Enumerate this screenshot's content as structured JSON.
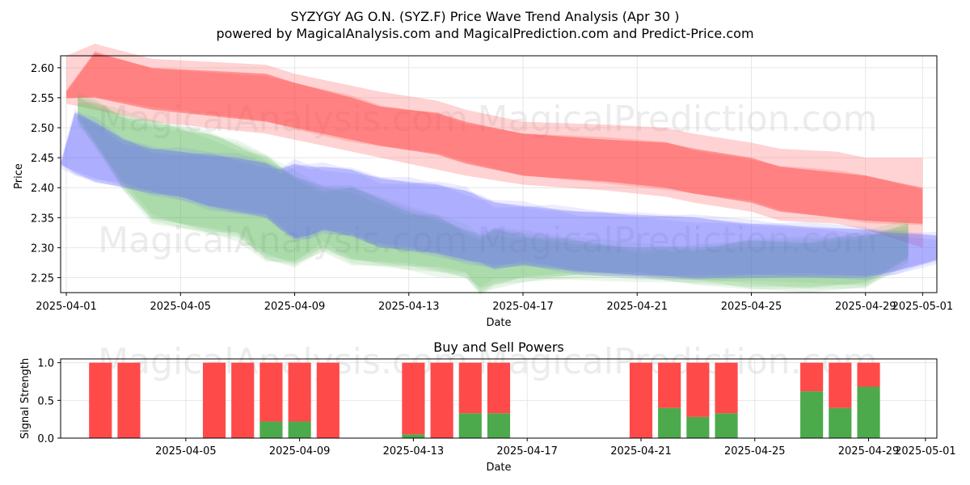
{
  "chart_data": [
    {
      "type": "area",
      "title": "SYZYGY AG O.N. (SYZ.F) Price Wave Trend Analysis (Apr 30 )",
      "subtitle": "powered by MagicalAnalysis.com and MagicalPrediction.com and Predict-Price.com",
      "xlabel": "Date",
      "ylabel": "Price",
      "xlim": [
        -0.2,
        30.5
      ],
      "ylim": [
        2.225,
        2.62
      ],
      "x_tick_values": [
        0,
        4,
        8,
        12,
        16,
        20,
        24,
        28,
        30
      ],
      "x_tick_labels": [
        "2025-04-01",
        "2025-04-05",
        "2025-04-09",
        "2025-04-13",
        "2025-04-17",
        "2025-04-21",
        "2025-04-25",
        "2025-04-29",
        "2025-05-01"
      ],
      "y_ticks": [
        2.25,
        2.3,
        2.35,
        2.4,
        2.45,
        2.5,
        2.55,
        2.6
      ],
      "y_tick_labels": [
        "2.25",
        "2.30",
        "2.35",
        "2.40",
        "2.45",
        "2.50",
        "2.55",
        "2.60"
      ],
      "grid": true,
      "watermarks": [
        "MagicalAnalysis.com",
        "MagicalPrediction.com"
      ],
      "series": [
        {
          "name": "red wave band (light)",
          "color": "#ff8080",
          "x": [
            0,
            1,
            3,
            7,
            8,
            10,
            11,
            13,
            14,
            16,
            19,
            21,
            22,
            24,
            25,
            27,
            28,
            30
          ],
          "upper": [
            2.62,
            2.64,
            2.615,
            2.605,
            2.59,
            2.57,
            2.56,
            2.545,
            2.53,
            2.51,
            2.505,
            2.5,
            2.49,
            2.475,
            2.465,
            2.46,
            2.45,
            2.45
          ],
          "lower": [
            2.54,
            2.53,
            2.51,
            2.49,
            2.48,
            2.46,
            2.45,
            2.43,
            2.42,
            2.405,
            2.395,
            2.385,
            2.375,
            2.36,
            2.345,
            2.34,
            2.33,
            2.3
          ]
        },
        {
          "name": "red wave band (core)",
          "color": "#ff4040",
          "x": [
            0,
            1,
            3,
            7,
            8,
            10,
            11,
            13,
            14,
            16,
            19,
            21,
            22,
            24,
            25,
            27,
            28,
            30
          ],
          "upper": [
            2.56,
            2.625,
            2.6,
            2.59,
            2.575,
            2.55,
            2.535,
            2.525,
            2.51,
            2.49,
            2.48,
            2.475,
            2.465,
            2.45,
            2.435,
            2.425,
            2.42,
            2.4
          ],
          "lower": [
            2.55,
            2.55,
            2.53,
            2.51,
            2.5,
            2.48,
            2.47,
            2.455,
            2.44,
            2.42,
            2.41,
            2.4,
            2.39,
            2.375,
            2.36,
            2.35,
            2.345,
            2.34
          ]
        },
        {
          "name": "green wave band",
          "color": "#40b040",
          "x": [
            0.4,
            1,
            2,
            3,
            5,
            6,
            7,
            8,
            9,
            10,
            12,
            13,
            14,
            14.5,
            15,
            16,
            18,
            20,
            22,
            24,
            26,
            28,
            29.5
          ],
          "upper": [
            2.55,
            2.54,
            2.52,
            2.51,
            2.49,
            2.47,
            2.45,
            2.42,
            2.4,
            2.4,
            2.36,
            2.35,
            2.33,
            2.32,
            2.33,
            2.32,
            2.31,
            2.3,
            2.3,
            2.31,
            2.31,
            2.32,
            2.34
          ],
          "lower": [
            2.51,
            2.47,
            2.4,
            2.35,
            2.33,
            2.32,
            2.28,
            2.27,
            2.3,
            2.28,
            2.27,
            2.26,
            2.25,
            2.225,
            2.24,
            2.25,
            2.255,
            2.25,
            2.24,
            2.235,
            2.235,
            2.24,
            2.28
          ]
        },
        {
          "name": "blue wave band",
          "color": "#6060ff",
          "x": [
            -0.2,
            0.3,
            1,
            2,
            3,
            4,
            5,
            6,
            7,
            7.5,
            8,
            8.5,
            9,
            10,
            11,
            12,
            13,
            14,
            14.5,
            15,
            16,
            17,
            18,
            20,
            22,
            24,
            26,
            28,
            29,
            30.5
          ],
          "upper": [
            2.44,
            2.525,
            2.51,
            2.48,
            2.465,
            2.46,
            2.455,
            2.45,
            2.44,
            2.43,
            2.44,
            2.435,
            2.435,
            2.43,
            2.415,
            2.41,
            2.405,
            2.395,
            2.385,
            2.375,
            2.37,
            2.365,
            2.36,
            2.355,
            2.35,
            2.34,
            2.335,
            2.33,
            2.325,
            2.32
          ],
          "lower": [
            2.44,
            2.425,
            2.41,
            2.4,
            2.39,
            2.385,
            2.37,
            2.36,
            2.35,
            2.33,
            2.315,
            2.32,
            2.33,
            2.32,
            2.3,
            2.295,
            2.29,
            2.28,
            2.275,
            2.265,
            2.27,
            2.265,
            2.26,
            2.255,
            2.25,
            2.25,
            2.25,
            2.25,
            2.26,
            2.28
          ]
        }
      ]
    },
    {
      "type": "bar",
      "title": "Buy and Sell Powers",
      "xlabel": "Date",
      "ylabel": "Signal Strength",
      "xlim": [
        -0.4,
        30.4
      ],
      "ylim": [
        0,
        1.05
      ],
      "x_tick_values": [
        4,
        8,
        12,
        16,
        20,
        24,
        28,
        30
      ],
      "x_tick_labels": [
        "2025-04-05",
        "2025-04-09",
        "2025-04-13",
        "2025-04-17",
        "2025-04-21",
        "2025-04-25",
        "2025-04-29",
        "2025-05-01"
      ],
      "y_ticks": [
        0,
        0.5,
        1
      ],
      "y_tick_labels": [
        "0.0",
        "0.5",
        "1.0"
      ],
      "series": [
        {
          "name": "Buy",
          "color": "#4caa4c"
        },
        {
          "name": "Sell",
          "color": "#ff4a4a"
        }
      ],
      "x": [
        1,
        2,
        5,
        6,
        7,
        8,
        9,
        12,
        13,
        14,
        15,
        20,
        21,
        22,
        23,
        26,
        27,
        28
      ],
      "buy": [
        0,
        0,
        0,
        0,
        0.22,
        0.22,
        0,
        0.05,
        0,
        0.33,
        0.33,
        0,
        0.4,
        0.28,
        0.33,
        0.62,
        0.4,
        0.68
      ],
      "sell": [
        1,
        1,
        1,
        1,
        0.78,
        0.78,
        1,
        0.95,
        1,
        0.67,
        0.67,
        1,
        0.6,
        0.72,
        0.67,
        0.38,
        0.6,
        0.32
      ]
    }
  ]
}
